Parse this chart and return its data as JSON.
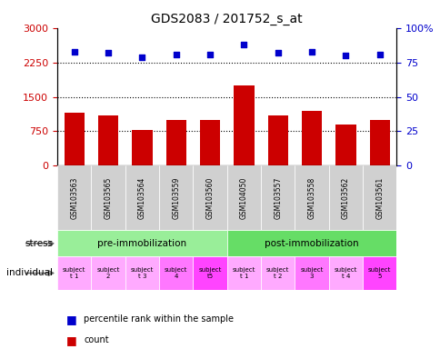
{
  "title": "GDS2083 / 201752_s_at",
  "samples": [
    "GSM103563",
    "GSM103565",
    "GSM103564",
    "GSM103559",
    "GSM103560",
    "GSM104050",
    "GSM103557",
    "GSM103558",
    "GSM103562",
    "GSM103561"
  ],
  "counts": [
    1150,
    1100,
    780,
    1000,
    1000,
    1750,
    1100,
    1200,
    900,
    1000
  ],
  "percentile_ranks": [
    83,
    82,
    79,
    81,
    81,
    88,
    82,
    83,
    80,
    81
  ],
  "ylim_left": [
    0,
    3000
  ],
  "ylim_right": [
    0,
    100
  ],
  "yticks_left": [
    0,
    750,
    1500,
    2250,
    3000
  ],
  "yticks_right": [
    0,
    25,
    50,
    75,
    100
  ],
  "bar_color": "#cc0000",
  "dot_color": "#0000cc",
  "stress_groups": [
    {
      "label": "pre-immobilization",
      "start": 0,
      "end": 5,
      "color": "#99ee99"
    },
    {
      "label": "post-immobilization",
      "start": 5,
      "end": 10,
      "color": "#66dd66"
    }
  ],
  "individual_labels": [
    "subject\nt 1",
    "subject\n2",
    "subject\nt 3",
    "subject\n4",
    "subject\nt5",
    "subject\nt 1",
    "subject\nt 2",
    "subject\n3",
    "subject\nt 4",
    "subject\n5"
  ],
  "individual_colors": [
    "#ffaaff",
    "#ffaaff",
    "#ffaaff",
    "#ff77ff",
    "#ff44ff",
    "#ffaaff",
    "#ffaaff",
    "#ff77ff",
    "#ffaaff",
    "#ff44ff"
  ],
  "sample_cell_color": "#d0d0d0",
  "bg_color": "#ffffff",
  "tick_label_color_left": "#cc0000",
  "tick_label_color_right": "#0000cc"
}
